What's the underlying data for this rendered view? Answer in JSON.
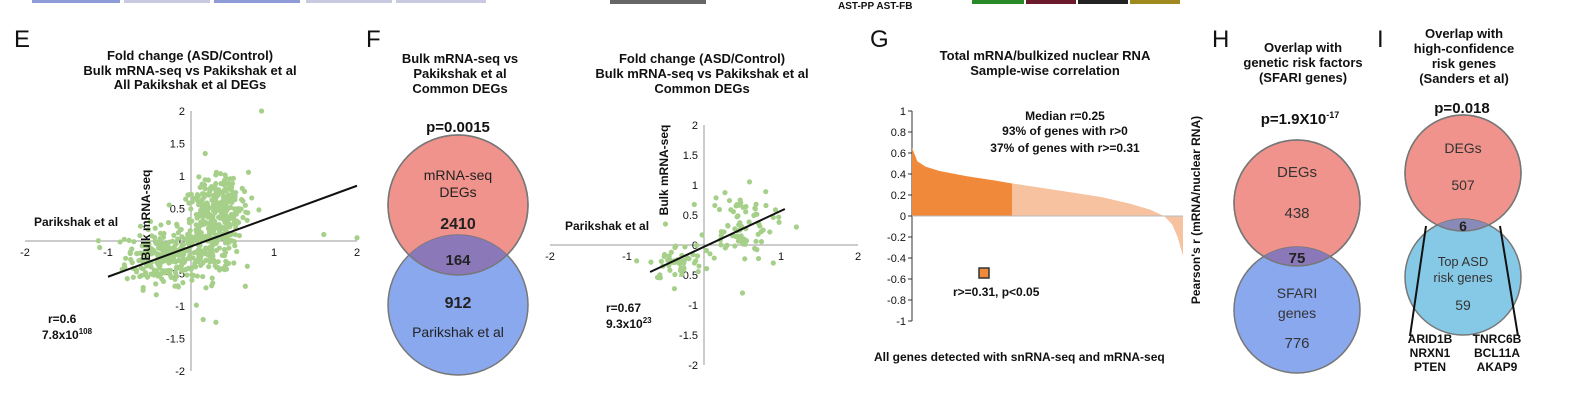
{
  "top_strip": {
    "label": "AST-PP AST-FB"
  },
  "panel_E": {
    "letter": "E",
    "title": [
      "Fold change (ASD/Control)",
      "Bulk mRNA-seq vs Pakikshak et al",
      "All Pakikshak et al DEGs"
    ],
    "ylabel": "Bulk mRNA-seq",
    "xlabel": "Parikshak et al",
    "r_label": "r=0.6",
    "p_label": "7.8x10",
    "p_exp": "108",
    "x_ticks": [
      "-2",
      "-1",
      "1",
      "2"
    ],
    "y_ticks": [
      "2",
      "1.5",
      "1",
      "0.5",
      "0",
      "-0.5",
      "-1",
      "-1.5",
      "-2"
    ]
  },
  "panel_F": {
    "letter": "F",
    "venn_title": [
      "Bulk mRNA-seq vs",
      "Pakikshak et al",
      "Common DEGs"
    ],
    "venn_p": "p=0.0015",
    "venn_top_label": [
      "mRNA-seq",
      "DEGs"
    ],
    "venn_top_count": "2410",
    "venn_overlap": "164",
    "venn_bottom_count": "912",
    "venn_bottom_label": "Parikshak et al",
    "scatter_title": [
      "Fold change (ASD/Control)",
      "Bulk mRNA-seq vs Pakikshak et al",
      "Common DEGs"
    ],
    "ylabel": "Bulk mRNA-seq",
    "xlabel": "Parikshak et al",
    "r_label": "r=0.67",
    "p_label": "9.3x10",
    "p_exp": "23",
    "x_ticks": [
      "-2",
      "-1",
      "1",
      "2"
    ],
    "y_ticks": [
      "2",
      "1.5",
      "1",
      "0.5",
      "0",
      "-0.5",
      "-1",
      "-1.5",
      "-2"
    ]
  },
  "panel_G": {
    "letter": "G",
    "title": [
      "Total mRNA/bulkized nuclear RNA",
      "Sample-wise correlation"
    ],
    "annotation": [
      "Median r=0.25",
      "93% of genes with r>0",
      "37% of genes with r>=0.31"
    ],
    "legend_label": "r>=0.31, p<0.05",
    "ylabel": "Pearson's r (mRNA/nuclear RNA)",
    "xlabel": "All genes detected with snRNA-seq and mRNA-seq",
    "y_ticks": [
      "1",
      "0.8",
      "0.6",
      "0.4",
      "0.2",
      "0",
      "-0.2",
      "-0.4",
      "-0.6",
      "-0.8",
      "-1"
    ]
  },
  "panel_H": {
    "letter": "H",
    "title": [
      "Overlap with",
      "genetic risk factors",
      "(SFARI genes)"
    ],
    "p_label": "p=1.9X10",
    "p_exp": "-17",
    "top_label": "DEGs",
    "top_count": "438",
    "overlap": "75",
    "bottom_label": [
      "SFARI",
      "genes"
    ],
    "bottom_count": "776"
  },
  "panel_I": {
    "letter": "I",
    "title": [
      "Overlap with",
      "high-confidence",
      "risk genes",
      "(Sanders et al)"
    ],
    "p_label": "p=0.018",
    "top_label": "DEGs",
    "top_count": "507",
    "overlap": "6",
    "bottom_label": [
      "Top ASD",
      "risk genes"
    ],
    "bottom_count": "59",
    "genes_left": [
      "ARID1B",
      "NRXN1",
      "PTEN"
    ],
    "genes_right": [
      "TNRC6B",
      "BCL11A",
      "AKAP9"
    ]
  },
  "colors": {
    "scatter_green": "#a6d08a",
    "venn_red": "#f0938c",
    "venn_blue": "#8aa8ee",
    "venn_overlap": "#8a78b8",
    "venn_cyan": "#86c9e6",
    "bar_orange": "#f08a3a",
    "bar_peach": "#f6c2a0"
  },
  "chart_data": [
    {
      "type": "scatter",
      "panel": "E",
      "xlabel": "Parikshak et al",
      "ylabel": "Bulk mRNA-seq",
      "xlim": [
        -2,
        2
      ],
      "ylim": [
        -2,
        2
      ],
      "correlation_r": 0.6,
      "fit_line": {
        "x": [
          -1,
          2
        ],
        "y": [
          -0.55,
          0.85
        ]
      },
      "clusters": [
        {
          "cx": -0.35,
          "cy": -0.25,
          "sx": 0.22,
          "sy": 0.22,
          "n": 230
        },
        {
          "cx": 0.25,
          "cy": 0.2,
          "sx": 0.18,
          "sy": 0.35,
          "n": 330
        },
        {
          "cx": 0.45,
          "cy": 0.55,
          "sx": 0.12,
          "sy": 0.25,
          "n": 80
        }
      ],
      "outliers": [
        [
          0.85,
          2.0
        ],
        [
          0.3,
          -1.25
        ],
        [
          -1.1,
          -0.1
        ],
        [
          1.6,
          0.1
        ],
        [
          2.0,
          0.05
        ]
      ]
    },
    {
      "type": "scatter",
      "panel": "F",
      "xlabel": "Parikshak et al",
      "ylabel": "Bulk mRNA-seq",
      "xlim": [
        -2,
        2
      ],
      "ylim": [
        -2,
        2
      ],
      "correlation_r": 0.67,
      "fit_line": {
        "x": [
          -0.7,
          1.05
        ],
        "y": [
          -0.45,
          0.6
        ]
      },
      "clusters": [
        {
          "cx": -0.35,
          "cy": -0.3,
          "sx": 0.18,
          "sy": 0.15,
          "n": 50
        },
        {
          "cx": 0.45,
          "cy": 0.35,
          "sx": 0.22,
          "sy": 0.3,
          "n": 80
        }
      ],
      "outliers": [
        [
          0.5,
          -0.8
        ],
        [
          0.9,
          -0.3
        ],
        [
          1.2,
          0.3
        ],
        [
          -0.5,
          0.35
        ]
      ]
    },
    {
      "type": "area",
      "panel": "G",
      "description_series": "sorted per-gene Pearson r",
      "ylim": [
        -1,
        1
      ],
      "median_r": 0.25,
      "fraction_r_gt_0": 0.93,
      "fraction_r_ge_0_31": 0.37,
      "sorted_r_profile": [
        [
          0.0,
          0.65
        ],
        [
          0.02,
          0.52
        ],
        [
          0.05,
          0.47
        ],
        [
          0.1,
          0.43
        ],
        [
          0.2,
          0.38
        ],
        [
          0.3,
          0.34
        ],
        [
          0.37,
          0.31
        ],
        [
          0.5,
          0.26
        ],
        [
          0.6,
          0.22
        ],
        [
          0.7,
          0.18
        ],
        [
          0.8,
          0.12
        ],
        [
          0.88,
          0.06
        ],
        [
          0.93,
          0.0
        ],
        [
          0.96,
          -0.08
        ],
        [
          0.98,
          -0.2
        ],
        [
          1.0,
          -0.38
        ]
      ],
      "highlight_threshold": 0.31
    }
  ]
}
